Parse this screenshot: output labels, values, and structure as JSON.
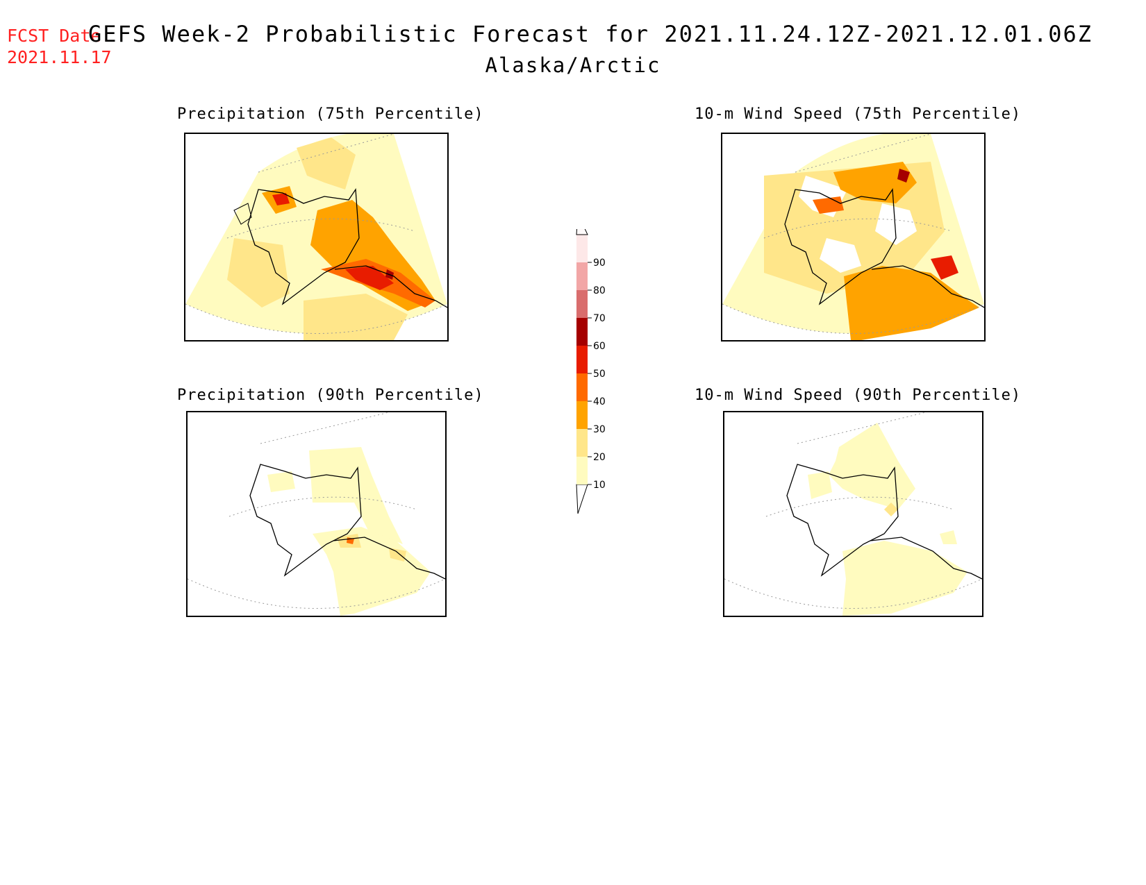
{
  "header": {
    "fcst_label": "FCST Date:",
    "fcst_date": "2021.11.17",
    "title": "GEFS Week-2 Probabilistic Forecast for 2021.11.24.12Z-2021.12.01.06Z",
    "subtitle": "Alaska/Arctic"
  },
  "panels": [
    {
      "title": "Precipitation (75th Percentile)"
    },
    {
      "title": "10-m Wind Speed (75th Percentile)"
    },
    {
      "title": "Precipitation (90th Percentile)"
    },
    {
      "title": "10-m Wind Speed (90th Percentile)"
    }
  ],
  "colorbar": {
    "levels": [
      "10",
      "20",
      "30",
      "40",
      "50",
      "60",
      "70",
      "80",
      "90"
    ],
    "colors": [
      "#fffbbf",
      "#ffe68a",
      "#ffa300",
      "#ff6a00",
      "#e81c00",
      "#a50000",
      "#d96d6d",
      "#f2a6a6",
      "#fde8e8"
    ]
  }
}
